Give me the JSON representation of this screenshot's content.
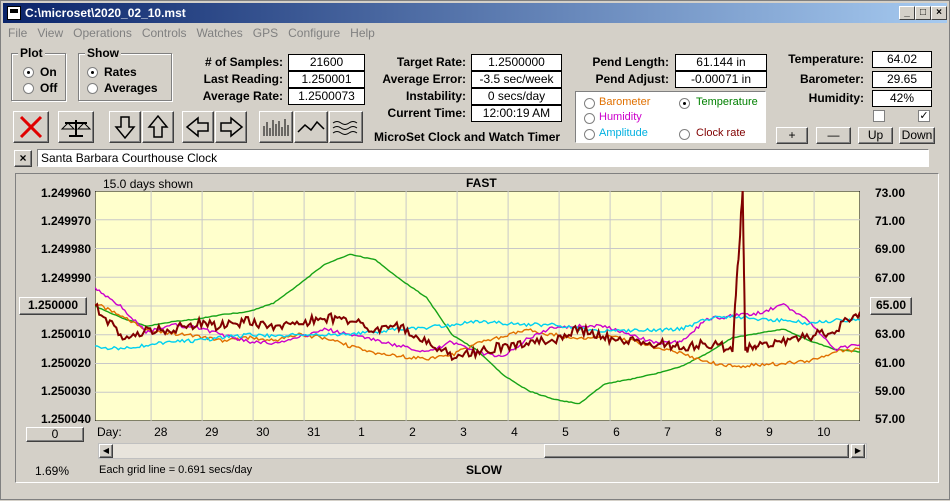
{
  "window": {
    "title": "C:\\microset\\2020_02_10.mst"
  },
  "menu": [
    "File",
    "View",
    "Operations",
    "Controls",
    "Watches",
    "GPS",
    "Configure",
    "Help"
  ],
  "plot_group": {
    "title": "Plot",
    "on_label": "On",
    "off_label": "Off",
    "selected": "On"
  },
  "show_group": {
    "title": "Show",
    "rates_label": "Rates",
    "averages_label": "Averages",
    "selected": "Rates"
  },
  "stats": {
    "samples_label": "# of Samples:",
    "samples": "21600",
    "last_label": "Last Reading:",
    "last": "1.250001",
    "avg_label": "Average Rate:",
    "avg": "1.2500073",
    "target_label": "Target Rate:",
    "target": "1.2500000",
    "avg_err_label": "Average Error:",
    "avg_err": "-3.5 sec/week",
    "instab_label": "Instability:",
    "instab": "0 secs/day",
    "time_label": "Current Time:",
    "time": "12:00:19 AM",
    "pend_len_label": "Pend Length:",
    "pend_len": "61.144 in",
    "pend_adj_label": "Pend Adjust:",
    "pend_adj": "-0.00071 in",
    "temp_label": "Temperature:",
    "temp": "64.02",
    "baro_label": "Barometer:",
    "baro": "29.65",
    "humid_label": "Humidity:",
    "humid": "42%"
  },
  "app_caption": "MicroSet Clock and Watch Timer",
  "channel_options": [
    {
      "label": "Barometer",
      "color": "#e07000",
      "selected": false
    },
    {
      "label": "Temperature",
      "color": "#008000",
      "selected": true
    },
    {
      "label": "Humidity",
      "color": "#cc00cc",
      "selected": false
    },
    {
      "label": "Clock rate",
      "color": "#800000",
      "selected": false
    },
    {
      "label": "Amplitude",
      "color": "#00b0e0",
      "selected": false
    }
  ],
  "channel_buttons": {
    "plus": "+",
    "minus": "—",
    "up": "Up",
    "down": "Down"
  },
  "checkbox_states": [
    false,
    true
  ],
  "clock_name": {
    "close": "×",
    "value": "Santa Barbara Courthouse Clock"
  },
  "chart_header": {
    "days_shown": "15.0 days shown",
    "top": "FAST",
    "bottom": "SLOW",
    "grid_note": "Each grid line = 0.691 secs/day",
    "percent": "1.69%"
  },
  "left_axis": {
    "labels": [
      "1.249960",
      "1.249970",
      "1.249980",
      "1.249990",
      "1.250000",
      "1.250010",
      "1.250020",
      "1.250030",
      "1.250040"
    ],
    "center_button": "1.250000",
    "zero_button": "0"
  },
  "right_axis": {
    "labels": [
      "73.00",
      "71.00",
      "69.00",
      "67.00",
      "65.00",
      "63.00",
      "61.00",
      "59.00",
      "57.00"
    ],
    "center_button": "65.00"
  },
  "x_axis": {
    "prefix": "Day:",
    "labels": [
      "28",
      "29",
      "30",
      "31",
      "1",
      "2",
      "3",
      "4",
      "5",
      "6",
      "7",
      "8",
      "9",
      "10"
    ]
  },
  "chart_data": {
    "type": "line",
    "title": "",
    "x_label": "Day",
    "x_range_days": [
      0,
      15
    ],
    "left_ylim": [
      1.25004,
      1.24996
    ],
    "right_ylim": [
      57,
      73
    ],
    "grid": true,
    "series": [
      {
        "name": "Temperature",
        "color": "#17a317",
        "axis": "right",
        "points": [
          [
            0,
            65.0
          ],
          [
            0.5,
            64.2
          ],
          [
            1,
            63.6
          ],
          [
            1.5,
            63.9
          ],
          [
            2,
            64.1
          ],
          [
            2.5,
            64.4
          ],
          [
            3,
            64.6
          ],
          [
            3.5,
            65.2
          ],
          [
            4,
            66.5
          ],
          [
            4.5,
            67.9
          ],
          [
            5,
            68.6
          ],
          [
            5.5,
            68.2
          ],
          [
            6,
            66.8
          ],
          [
            6.5,
            65.6
          ],
          [
            7,
            63.0
          ],
          [
            7.5,
            61.9
          ],
          [
            8,
            60.2
          ],
          [
            8.5,
            59.1
          ],
          [
            9,
            58.5
          ],
          [
            9.5,
            58.2
          ],
          [
            10,
            59.6
          ],
          [
            10.5,
            59.9
          ],
          [
            11,
            60.3
          ],
          [
            11.5,
            60.8
          ],
          [
            12,
            61.7
          ],
          [
            12.5,
            62.8
          ],
          [
            13,
            63.1
          ],
          [
            13.5,
            63.4
          ],
          [
            14,
            62.6
          ],
          [
            14.5,
            62.0
          ],
          [
            15,
            61.8
          ]
        ]
      },
      {
        "name": "Barometer",
        "color": "#e07000",
        "axis": "right",
        "points": [
          [
            0,
            65.2
          ],
          [
            0.5,
            64.3
          ],
          [
            1,
            63.4
          ],
          [
            1.5,
            63.1
          ],
          [
            2,
            62.9
          ],
          [
            2.5,
            62.6
          ],
          [
            3,
            62.8
          ],
          [
            3.5,
            62.6
          ],
          [
            4,
            63.0
          ],
          [
            4.5,
            62.8
          ],
          [
            5,
            62.2
          ],
          [
            5.5,
            61.7
          ],
          [
            6,
            61.5
          ],
          [
            6.5,
            61.3
          ],
          [
            7,
            61.6
          ],
          [
            7.5,
            62.4
          ],
          [
            8,
            62.9
          ],
          [
            8.5,
            63.3
          ],
          [
            9,
            63.0
          ],
          [
            9.5,
            62.7
          ],
          [
            10,
            62.9
          ],
          [
            10.5,
            62.6
          ],
          [
            11,
            62.1
          ],
          [
            11.5,
            61.7
          ],
          [
            12,
            61.1
          ],
          [
            12.5,
            60.8
          ],
          [
            13,
            60.9
          ],
          [
            13.5,
            61.0
          ],
          [
            14,
            61.2
          ],
          [
            14.5,
            61.8
          ],
          [
            15,
            62.0
          ]
        ]
      },
      {
        "name": "Humidity",
        "color": "#cc00cc",
        "axis": "right",
        "points": [
          [
            0,
            66.2
          ],
          [
            0.5,
            65.0
          ],
          [
            1,
            63.2
          ],
          [
            1.5,
            63.7
          ],
          [
            2,
            63.5
          ],
          [
            2.5,
            63.0
          ],
          [
            3,
            62.5
          ],
          [
            3.5,
            62.4
          ],
          [
            4,
            62.8
          ],
          [
            4.5,
            63.4
          ],
          [
            5,
            63.0
          ],
          [
            5.5,
            62.6
          ],
          [
            6,
            62.2
          ],
          [
            6.5,
            61.8
          ],
          [
            7,
            62.5
          ],
          [
            7.5,
            61.8
          ],
          [
            8,
            61.4
          ],
          [
            8.5,
            62.8
          ],
          [
            9,
            63.5
          ],
          [
            9.5,
            63.6
          ],
          [
            10,
            63.6
          ],
          [
            10.5,
            63.0
          ],
          [
            11,
            62.4
          ],
          [
            11.5,
            62.5
          ],
          [
            12,
            64.1
          ],
          [
            12.5,
            64.3
          ],
          [
            13,
            64.5
          ],
          [
            13.5,
            65.1
          ],
          [
            14,
            64.0
          ],
          [
            14.5,
            62.0
          ],
          [
            15,
            62.3
          ]
        ]
      },
      {
        "name": "Amplitude",
        "color": "#00d0f0",
        "axis": "right",
        "points": [
          [
            0,
            62.2
          ],
          [
            0.5,
            62.0
          ],
          [
            1,
            62.3
          ],
          [
            1.5,
            62.5
          ],
          [
            2,
            62.6
          ],
          [
            2.5,
            62.8
          ],
          [
            3,
            63.0
          ],
          [
            3.5,
            62.9
          ],
          [
            4,
            63.0
          ],
          [
            4.5,
            63.0
          ],
          [
            5,
            63.0
          ],
          [
            5.5,
            63.2
          ],
          [
            6,
            63.4
          ],
          [
            6.5,
            63.5
          ],
          [
            7,
            63.7
          ],
          [
            7.5,
            63.9
          ],
          [
            8,
            63.8
          ],
          [
            8.5,
            63.7
          ],
          [
            9,
            63.7
          ],
          [
            9.5,
            63.4
          ],
          [
            10,
            63.3
          ],
          [
            10.5,
            63.3
          ],
          [
            11,
            63.3
          ],
          [
            11.5,
            63.4
          ],
          [
            12,
            64.1
          ],
          [
            12.5,
            64.3
          ],
          [
            13,
            64.1
          ],
          [
            13.5,
            64.0
          ],
          [
            14,
            63.8
          ],
          [
            14.5,
            64.0
          ],
          [
            15,
            64.0
          ]
        ]
      },
      {
        "name": "Clock rate",
        "color": "#800000",
        "axis": "left",
        "points": [
          [
            0,
            1.25
          ],
          [
            0.5,
            1.25001
          ],
          [
            1,
            1.250009
          ],
          [
            1.5,
            1.250008
          ],
          [
            2,
            1.250006
          ],
          [
            2.5,
            1.250007
          ],
          [
            3,
            1.250005
          ],
          [
            3.5,
            1.250007
          ],
          [
            4,
            1.250006
          ],
          [
            4.5,
            1.250004
          ],
          [
            5,
            1.250005
          ],
          [
            5.5,
            1.250008
          ],
          [
            6,
            1.250007
          ],
          [
            6.5,
            1.250012
          ],
          [
            7,
            1.250017
          ],
          [
            7.5,
            1.250016
          ],
          [
            8,
            1.250014
          ],
          [
            8.5,
            1.250013
          ],
          [
            9,
            1.250012
          ],
          [
            9.5,
            1.250008
          ],
          [
            10,
            1.250011
          ],
          [
            10.5,
            1.250012
          ],
          [
            11,
            1.250013
          ],
          [
            11.5,
            1.250014
          ],
          [
            12,
            1.250013
          ],
          [
            12.5,
            1.250015
          ],
          [
            12.7,
            1.24996
          ],
          [
            12.75,
            1.250015
          ],
          [
            13,
            1.250014
          ],
          [
            13.5,
            1.250012
          ],
          [
            14,
            1.250011
          ],
          [
            14.5,
            1.250008
          ],
          [
            15,
            1.250002
          ]
        ]
      }
    ]
  }
}
